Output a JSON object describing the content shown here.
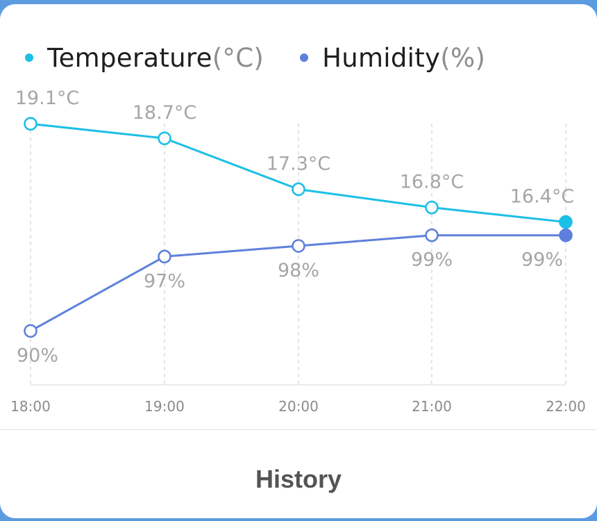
{
  "legend": {
    "temperature": {
      "name": "Temperature",
      "unit": "(°C)",
      "color": "#1cbfe6"
    },
    "humidity": {
      "name": "Humidity",
      "unit": "(%)",
      "color": "#5e80dc"
    }
  },
  "chart_data": {
    "type": "line",
    "categories": [
      "18:00",
      "19:00",
      "20:00",
      "21:00",
      "22:00"
    ],
    "series": [
      {
        "name": "Temperature(°C)",
        "values": [
          19.1,
          18.7,
          17.3,
          16.8,
          16.4
        ],
        "labels": [
          "19.1°C",
          "18.7°C",
          "17.3°C",
          "16.8°C",
          "16.4°C"
        ],
        "color": "#1cbfe6"
      },
      {
        "name": "Humidity(%)",
        "values": [
          90,
          97,
          98,
          99,
          99
        ],
        "labels": [
          "90%",
          "97%",
          "98%",
          "99%",
          "99%"
        ],
        "color": "#5e80dc"
      }
    ],
    "grid": "vertical dashed",
    "legend_position": "top-left"
  },
  "footer": {
    "history_label": "History"
  }
}
